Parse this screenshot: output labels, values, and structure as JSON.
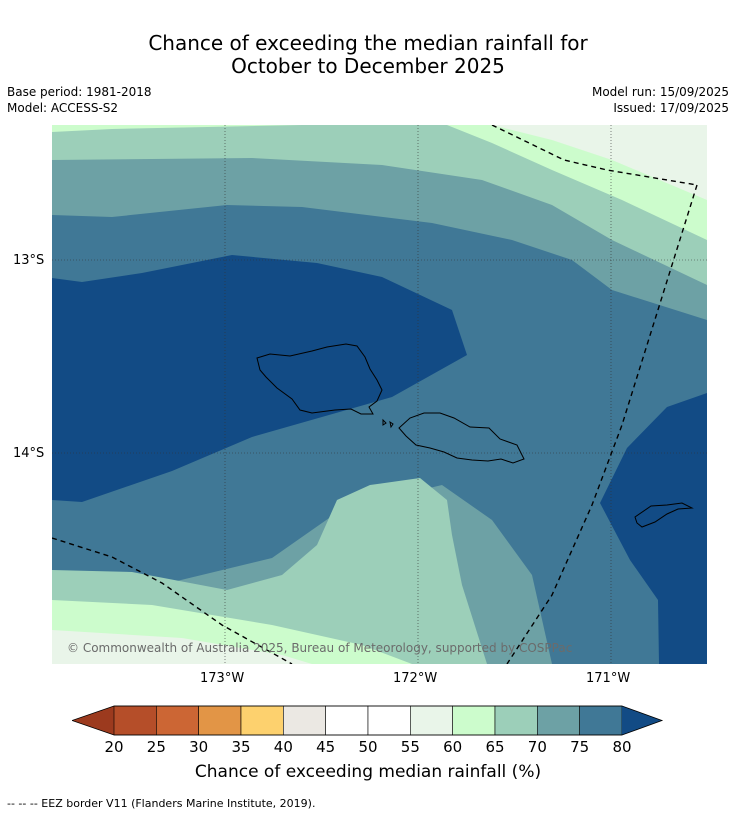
{
  "title": {
    "line1": "Chance of exceeding the median rainfall for",
    "line2": "October to December 2025"
  },
  "meta": {
    "base_period": "Base period: 1981-2018",
    "model": "Model: ACCESS-S2",
    "model_run": "Model run: 15/09/2025",
    "issued": "Issued: 17/09/2025"
  },
  "map": {
    "latitude_labels": [
      "13°S",
      "14°S"
    ],
    "longitude_labels": [
      "173°W",
      "172°W",
      "171°W"
    ],
    "copyright": "© Commonwealth of Australia 2025, Bureau of Meteorology, supported by COSPPac",
    "colors": {
      "c80": "#124b85",
      "c75": "#407896",
      "c70": "#6da1a5",
      "c65": "#9ccfb9",
      "c60": "#ccfccc",
      "c55": "#e9f5e9",
      "land_outline": "#000000",
      "grid": "#333333"
    }
  },
  "colorbar": {
    "ticks": [
      "20",
      "25",
      "30",
      "35",
      "40",
      "45",
      "50",
      "55",
      "60",
      "65",
      "70",
      "75",
      "80"
    ],
    "colors": [
      "#9c3a1e",
      "#b54e29",
      "#cc6634",
      "#e29546",
      "#fdd16e",
      "#ebe8e3",
      "#ffffff",
      "#ffffff",
      "#e9f5e9",
      "#ccfccc",
      "#9ccfb9",
      "#6da1a5",
      "#407896",
      "#124b85"
    ],
    "label": "Chance of exceeding median rainfall (%)"
  },
  "footnote": "--  --  -- EEZ border V11 (Flanders Marine Institute, 2019)."
}
